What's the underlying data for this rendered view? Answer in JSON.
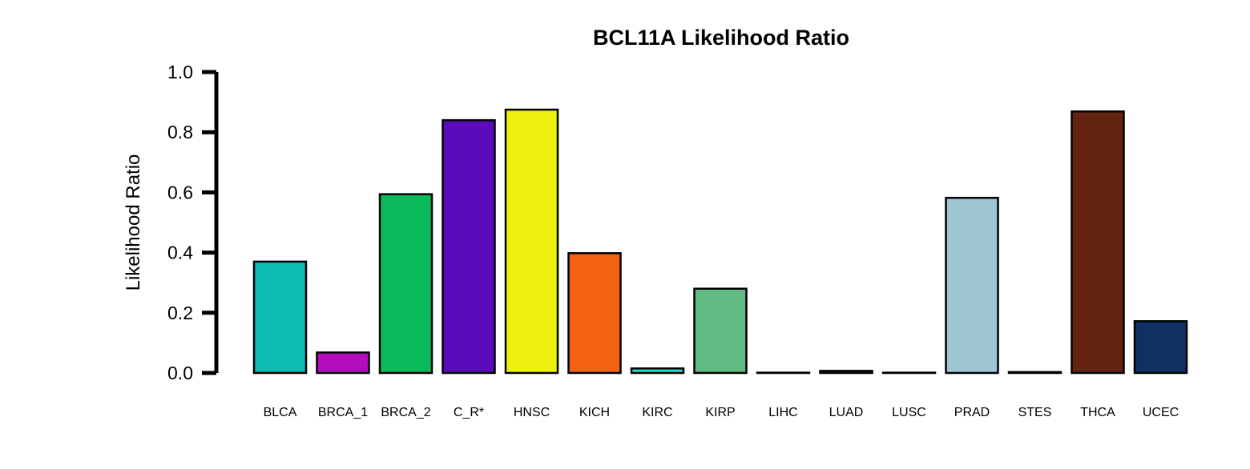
{
  "chart_data": {
    "type": "bar",
    "title": "BCL11A Likelihood Ratio",
    "xlabel": "",
    "ylabel": "Likelihood Ratio",
    "ylim": [
      0,
      1.0
    ],
    "yticks": [
      "0.0",
      "0.2",
      "0.4",
      "0.6",
      "0.8",
      "1.0"
    ],
    "grid": false,
    "legend": "none",
    "categories": [
      "BLCA",
      "BRCA_1",
      "BRCA_2",
      "C_R*",
      "HNSC",
      "KICH",
      "KIRC",
      "KIRP",
      "LIHC",
      "LUAD",
      "LUSC",
      "PRAD",
      "STES",
      "THCA",
      "UCEC"
    ],
    "values": [
      0.37,
      0.068,
      0.594,
      0.84,
      0.875,
      0.398,
      0.015,
      0.28,
      0.001,
      0.007,
      0.001,
      0.582,
      0.003,
      0.869,
      0.172
    ],
    "colors": [
      "#0bbbb4",
      "#b20cbc",
      "#0bba5a",
      "#5b0bb9",
      "#eef00e",
      "#f26211",
      "#1de0c7",
      "#61ba82",
      "#000000",
      "#8bb58b",
      "#000000",
      "#a0c6d4",
      "#000000",
      "#642412",
      "#112f62"
    ]
  }
}
